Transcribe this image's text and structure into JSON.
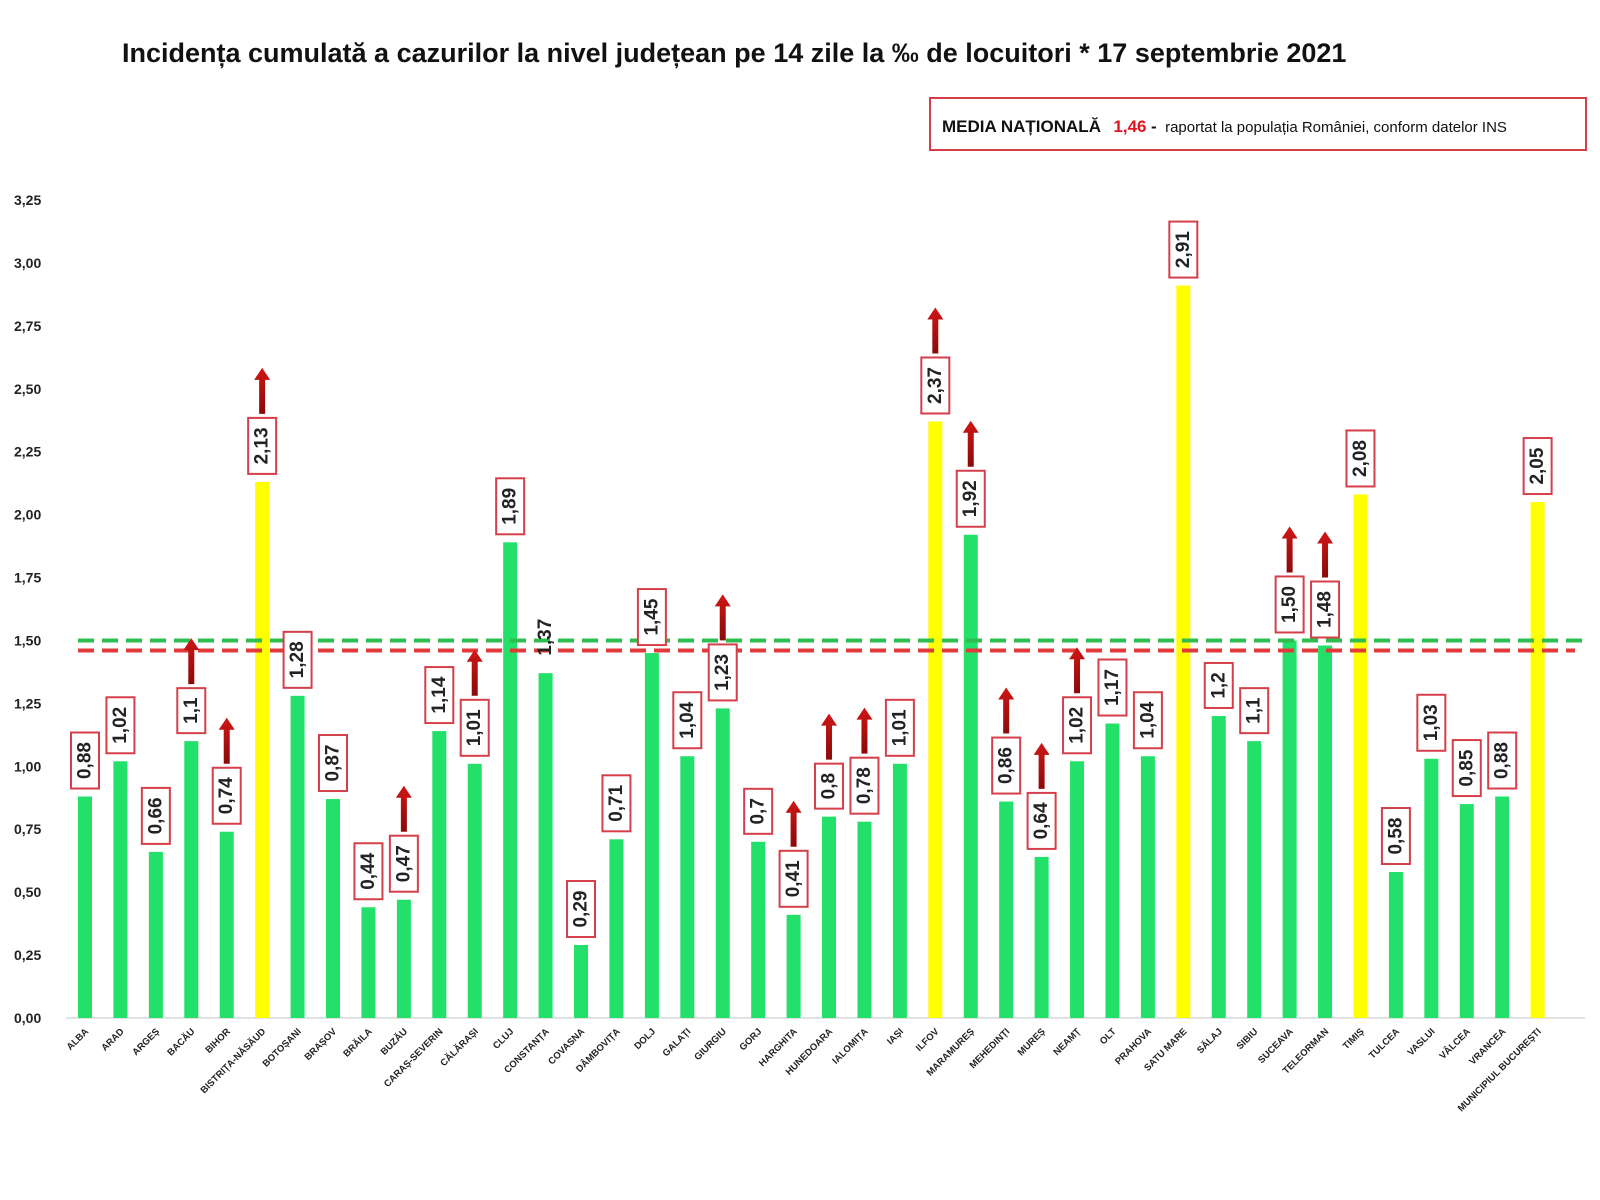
{
  "chart_data": {
    "type": "bar",
    "title": "Incidența cumulată a cazurilor la nivel județean pe 14 zile la ‰ de locuitori * 17 septembrie 2021",
    "legend_box": {
      "label": "MEDIA NAȚIONALĂ",
      "value_text": "1,46",
      "separator": " -",
      "text": " raportat la populația României, conform datelor INS"
    },
    "national_average": 1.46,
    "threshold_line": 1.5,
    "ylim": [
      0,
      3.25
    ],
    "yticks": [
      0,
      0.25,
      0.5,
      0.75,
      1.0,
      1.25,
      1.5,
      1.75,
      2.0,
      2.25,
      2.5,
      2.75,
      3.0,
      3.25
    ],
    "ytick_labels": [
      "0,00",
      "0,25",
      "0,50",
      "0,75",
      "1,00",
      "1,25",
      "1,50",
      "1,75",
      "2,00",
      "2,25",
      "2,50",
      "2,75",
      "3,00",
      "3,25"
    ],
    "categories": [
      "ALBA",
      "ARAD",
      "ARGEȘ",
      "BACĂU",
      "BIHOR",
      "BISTRIȚA-NĂSĂUD",
      "BOTOȘANI",
      "BRAȘOV",
      "BRĂILA",
      "BUZĂU",
      "CARAȘ-SEVERIN",
      "CĂLĂRAȘI",
      "CLUJ",
      "CONSTANȚA",
      "COVASNA",
      "DÂMBOVIȚA",
      "DOLJ",
      "GALAȚI",
      "GIURGIU",
      "GORJ",
      "HARGHITA",
      "HUNEDOARA",
      "IALOMIȚA",
      "IAȘI",
      "ILFOV",
      "MARAMUREȘ",
      "MEHEDINȚI",
      "MUREȘ",
      "NEAMȚ",
      "OLT",
      "PRAHOVA",
      "SATU MARE",
      "SĂLAJ",
      "SIBIU",
      "SUCEAVA",
      "TELEORMAN",
      "TIMIȘ",
      "TULCEA",
      "VASLUI",
      "VÂLCEA",
      "VRANCEA",
      "MUNICIPIUL BUCUREȘTI"
    ],
    "values": [
      0.88,
      1.02,
      0.66,
      1.1,
      0.74,
      2.13,
      1.28,
      0.87,
      0.44,
      0.47,
      1.14,
      1.01,
      1.89,
      1.37,
      0.29,
      0.71,
      1.45,
      1.04,
      1.23,
      0.7,
      0.41,
      0.8,
      0.78,
      1.01,
      2.37,
      1.92,
      0.86,
      0.64,
      1.02,
      1.17,
      1.04,
      2.91,
      1.2,
      1.1,
      1.5,
      1.48,
      2.08,
      0.58,
      1.03,
      0.85,
      0.88,
      2.05
    ],
    "value_labels": [
      "0,88",
      "1,02",
      "0,66",
      "1,1",
      "0,74",
      "2,13",
      "1,28",
      "0,87",
      "0,44",
      "0,47",
      "1,14",
      "1,01",
      "1,89",
      "1,37",
      "0,29",
      "0,71",
      "1,45",
      "1,04",
      "1,23",
      "0,7",
      "0,41",
      "0,8",
      "0,78",
      "1,01",
      "2,37",
      "1,92",
      "0,86",
      "0,64",
      "1,02",
      "1,17",
      "1,04",
      "2,91",
      "1,2",
      "1,1",
      "1,50",
      "1,48",
      "2,08",
      "0,58",
      "1,03",
      "0,85",
      "0,88",
      "2,05"
    ],
    "label_boxed": [
      true,
      true,
      true,
      true,
      true,
      true,
      true,
      true,
      true,
      true,
      true,
      true,
      true,
      false,
      true,
      true,
      true,
      true,
      true,
      true,
      true,
      true,
      true,
      true,
      true,
      true,
      true,
      true,
      true,
      true,
      true,
      true,
      true,
      true,
      true,
      true,
      true,
      true,
      true,
      true,
      true,
      true
    ],
    "increase_arrow": [
      false,
      false,
      false,
      true,
      true,
      true,
      false,
      false,
      false,
      true,
      false,
      true,
      false,
      false,
      false,
      false,
      false,
      false,
      true,
      false,
      true,
      true,
      true,
      false,
      true,
      true,
      true,
      true,
      true,
      false,
      false,
      false,
      false,
      false,
      true,
      true,
      false,
      false,
      false,
      false,
      false,
      false
    ],
    "colors": {
      "bar_normal": "#22e06a",
      "bar_high": "#ffff00",
      "avg_line": "#e23a3a",
      "threshold_line": "#2ebd4f",
      "arrow": "#b01010",
      "label_box": "#d43f4a",
      "legend_value": "#e0141e"
    }
  }
}
